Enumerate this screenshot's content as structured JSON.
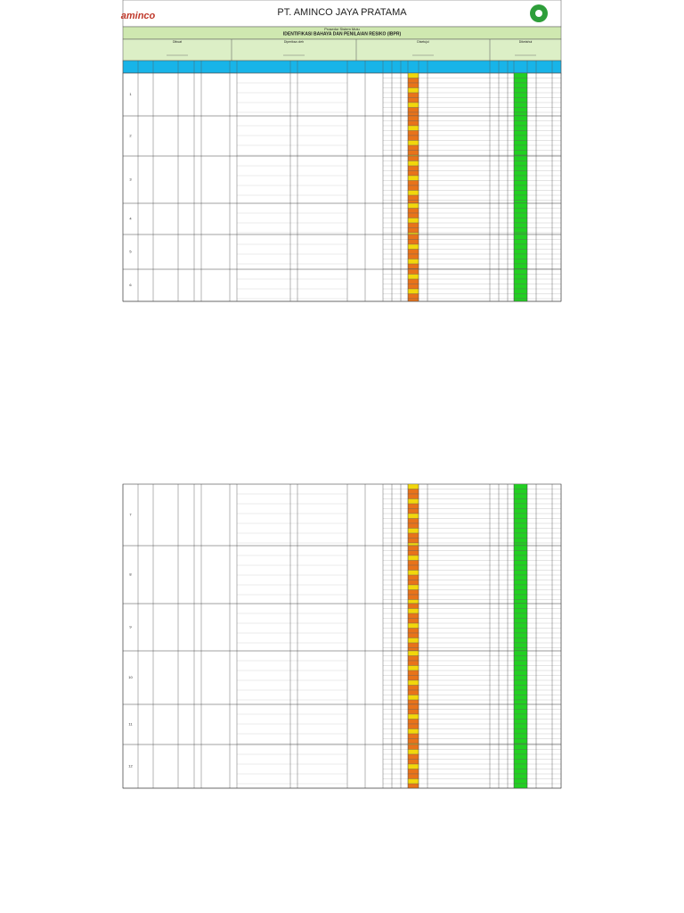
{
  "header": {
    "logo": "aminco",
    "company": "PT. AMINCO JAYA PRATAMA",
    "doc_type": "Prosedur Sistem Mutu",
    "title": "IDENTIFIKASI BAHAYA DAN PENILAIAN RESIKO (IBPR)"
  },
  "approval": [
    "Dibuat",
    "Diperiksa oleh",
    "Disetujui",
    "Diketahui"
  ],
  "rows": [
    {
      "no": "1"
    },
    {
      "no": "2"
    },
    {
      "no": "3"
    },
    {
      "no": "4"
    },
    {
      "no": "5"
    },
    {
      "no": "6"
    },
    {
      "no": "7"
    },
    {
      "no": "8"
    },
    {
      "no": "9"
    },
    {
      "no": "10"
    },
    {
      "no": "11"
    },
    {
      "no": "12"
    }
  ]
}
